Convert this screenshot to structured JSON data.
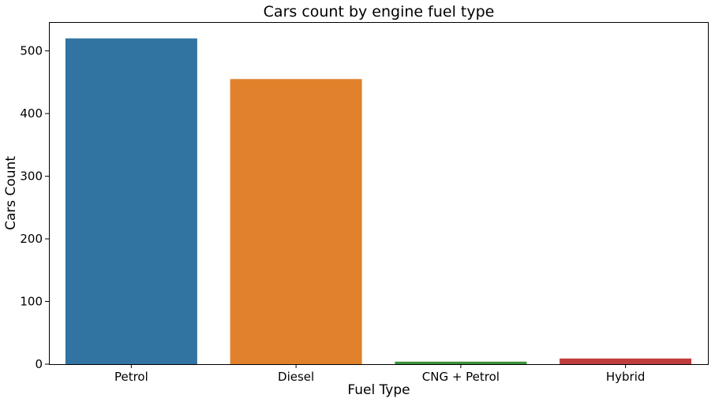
{
  "chart_data": {
    "type": "bar",
    "title": "Cars count by engine fuel type",
    "xlabel": "Fuel Type",
    "ylabel": "Cars Count",
    "categories": [
      "Petrol",
      "Diesel",
      "CNG + Petrol",
      "Hybrid"
    ],
    "values": [
      520,
      455,
      4,
      9
    ],
    "colors": [
      "#3274a1",
      "#e1812c",
      "#3a923a",
      "#c03d3e"
    ],
    "ylim": [
      0,
      546
    ],
    "yticks": [
      0,
      100,
      200,
      300,
      400,
      500
    ],
    "ytick_labels": [
      "0",
      "100",
      "200",
      "300",
      "400",
      "500"
    ],
    "grid": false,
    "legend": "none"
  }
}
